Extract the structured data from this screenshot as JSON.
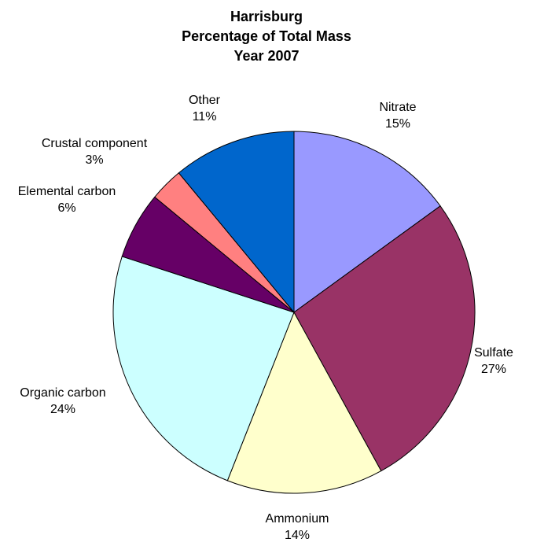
{
  "chart_data": {
    "type": "pie",
    "title": [
      "Harrisburg",
      "Percentage of Total Mass",
      "Year 2007"
    ],
    "categories": [
      "Nitrate",
      "Sulfate",
      "Ammonium",
      "Organic carbon",
      "Elemental carbon",
      "Crustal component",
      "Other"
    ],
    "values": [
      15,
      27,
      14,
      24,
      6,
      3,
      11
    ],
    "value_labels": [
      "15%",
      "27%",
      "14%",
      "24%",
      "6%",
      "3%",
      "11%"
    ],
    "colors": [
      "#9999ff",
      "#993366",
      "#ffffcc",
      "#ccffff",
      "#660066",
      "#ff8080",
      "#0066cc"
    ]
  }
}
